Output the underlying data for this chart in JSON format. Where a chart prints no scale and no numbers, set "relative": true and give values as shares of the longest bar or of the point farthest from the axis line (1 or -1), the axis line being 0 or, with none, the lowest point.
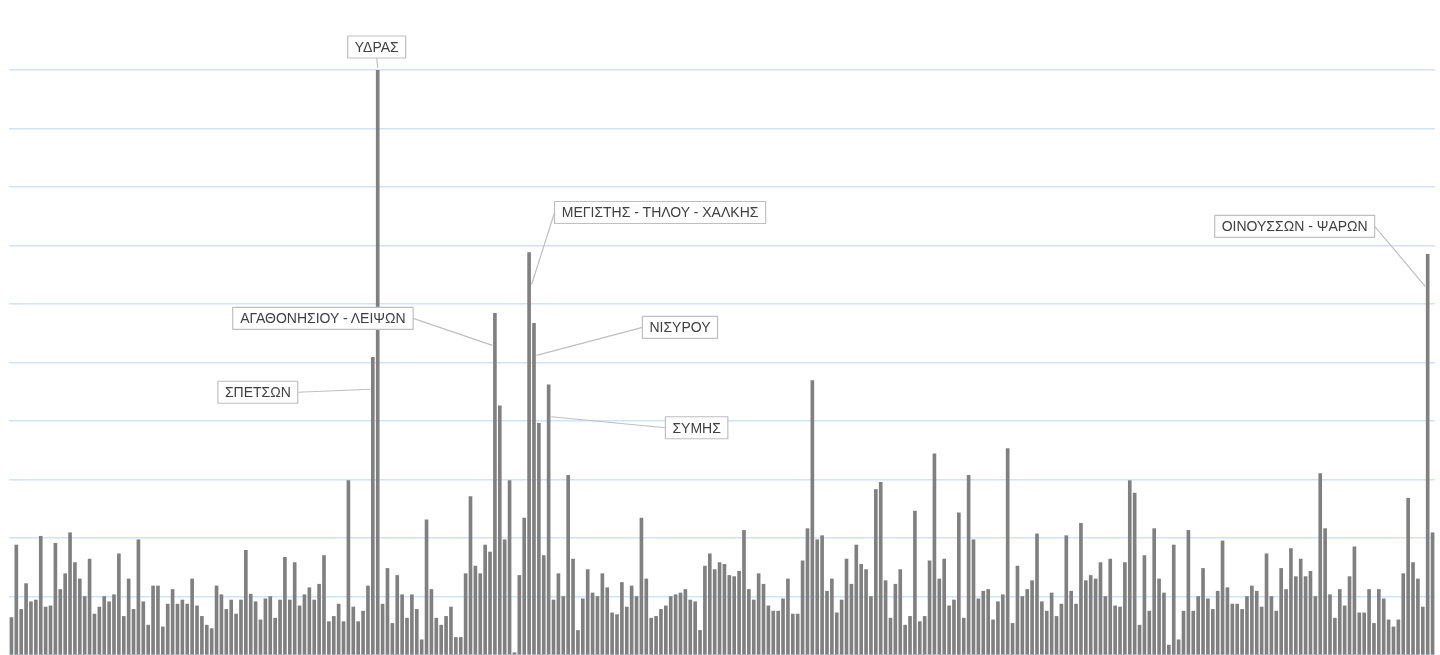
{
  "chart_data": {
    "type": "bar",
    "relative": true,
    "grid": "y",
    "color": "#808080",
    "categories": [
      null,
      null,
      null,
      null,
      null,
      null,
      null,
      null,
      null,
      null,
      null,
      null,
      null,
      null,
      null,
      null,
      null,
      null,
      null,
      null,
      null,
      null,
      null,
      null,
      null,
      null,
      null,
      null,
      null,
      null,
      null,
      null,
      null,
      null,
      null,
      null,
      null,
      null,
      null,
      null,
      null,
      null,
      null,
      null,
      null,
      null,
      null,
      null,
      null,
      null,
      null,
      null,
      null,
      null,
      null,
      null,
      null,
      null,
      null,
      null,
      null,
      null,
      null,
      null,
      null,
      null,
      null,
      null,
      null,
      null,
      null,
      null,
      null,
      null,
      null,
      null,
      null,
      null,
      null,
      null,
      null,
      null,
      null,
      null,
      null,
      null,
      null,
      null,
      null,
      null,
      null,
      null,
      null,
      null,
      null,
      null,
      null,
      null,
      null,
      null,
      null,
      null,
      null,
      null,
      null,
      null,
      null,
      null,
      null,
      null,
      null,
      null,
      null,
      null,
      null,
      null,
      null,
      null,
      null,
      null,
      null,
      null,
      null,
      null,
      null,
      null,
      null,
      null,
      null,
      null,
      null,
      null,
      null,
      null,
      null,
      null,
      null,
      null,
      null,
      null,
      null,
      null,
      null,
      null,
      null,
      null,
      null,
      null,
      null,
      null,
      null,
      null,
      null,
      null,
      null,
      null,
      null,
      null,
      null,
      null,
      null,
      null,
      null,
      null,
      null,
      null,
      null,
      null,
      null,
      null,
      null,
      null,
      null,
      null,
      null,
      null,
      null,
      null,
      null,
      null,
      null,
      null,
      null,
      null,
      null,
      null,
      null,
      null,
      null,
      null,
      null,
      null,
      null,
      null,
      null,
      null,
      null,
      null,
      null,
      null,
      null,
      null,
      null,
      null,
      null,
      null,
      null,
      null,
      null,
      null,
      null,
      null,
      null,
      null,
      null,
      null,
      null,
      null,
      null,
      null,
      null,
      null,
      null,
      null,
      null,
      null,
      null,
      null,
      null,
      null,
      null,
      null,
      null,
      null,
      null,
      null,
      null,
      null,
      null,
      null,
      null,
      null,
      null,
      null,
      null,
      null,
      null,
      null,
      null,
      null,
      null,
      null,
      null,
      null,
      null,
      null,
      null,
      null,
      null,
      null,
      null,
      null,
      null,
      null,
      null,
      null,
      null,
      null,
      null,
      null,
      null,
      null,
      null,
      null,
      null,
      null,
      null,
      null,
      null,
      null,
      null,
      null,
      null,
      null,
      null,
      null,
      null,
      null,
      null,
      null,
      null,
      null
    ],
    "values": [
      0.064,
      0.188,
      0.078,
      0.122,
      0.091,
      0.094,
      0.203,
      0.082,
      0.084,
      0.191,
      0.112,
      0.139,
      0.209,
      0.158,
      0.13,
      0.1,
      0.164,
      0.07,
      0.082,
      0.1,
      0.091,
      0.103,
      0.173,
      0.066,
      0.13,
      0.078,
      0.197,
      0.091,
      0.051,
      0.118,
      0.118,
      0.048,
      0.087,
      0.112,
      0.087,
      0.094,
      0.087,
      0.13,
      0.084,
      0.066,
      0.051,
      0.045,
      0.118,
      0.103,
      0.078,
      0.094,
      0.07,
      0.094,
      0.179,
      0.104,
      0.091,
      0.06,
      0.096,
      0.1,
      0.063,
      0.094,
      0.167,
      0.094,
      0.158,
      0.084,
      0.103,
      0.115,
      0.094,
      0.121,
      0.17,
      0.057,
      0.066,
      0.087,
      0.057,
      0.298,
      0.082,
      0.057,
      0.075,
      0.118,
      0.509,
      1,
      0.087,
      0.148,
      0.054,
      0.136,
      0.103,
      0.063,
      0.103,
      0.078,
      0.026,
      0.231,
      0.112,
      0.063,
      0.051,
      0.066,
      0.082,
      0.03,
      0.03,
      0.139,
      0.271,
      0.152,
      0.139,
      0.188,
      0.176,
      0.584,
      0.426,
      0.197,
      0.298,
      0.004,
      0.136,
      0.234,
      0.688,
      0.567,
      0.396,
      0.17,
      0.462,
      0.094,
      0.139,
      0.1,
      0.307,
      0.164,
      0.042,
      0.096,
      0.146,
      0.106,
      0.1,
      0.139,
      0.115,
      0.072,
      0.069,
      0.124,
      0.082,
      0.118,
      0.1,
      0.234,
      0.13,
      0.063,
      0.066,
      0.078,
      0.084,
      0.1,
      0.103,
      0.106,
      0.112,
      0.094,
      0.091,
      0.042,
      0.152,
      0.173,
      0.146,
      0.158,
      0.155,
      0.136,
      0.134,
      0.143,
      0.213,
      0.112,
      0.094,
      0.139,
      0.121,
      0.084,
      0.075,
      0.075,
      0.096,
      0.13,
      0.07,
      0.07,
      0.161,
      0.216,
      0.469,
      0.197,
      0.204,
      0.109,
      0.13,
      0.072,
      0.094,
      0.164,
      0.121,
      0.188,
      0.155,
      0.146,
      0.1,
      0.283,
      0.295,
      0.127,
      0.063,
      0.121,
      0.146,
      0.051,
      0.066,
      0.246,
      0.057,
      0.066,
      0.161,
      0.344,
      0.13,
      0.164,
      0.084,
      0.094,
      0.243,
      0.063,
      0.307,
      0.197,
      0.096,
      0.109,
      0.112,
      0.06,
      0.091,
      0.103,
      0.353,
      0.054,
      0.152,
      0.1,
      0.112,
      0.127,
      0.207,
      0.091,
      0.075,
      0.106,
      0.066,
      0.087,
      0.204,
      0.109,
      0.087,
      0.225,
      0.127,
      0.136,
      0.13,
      0.158,
      0.1,
      0.164,
      0.084,
      0.082,
      0.158,
      0.298,
      0.277,
      0.051,
      0.17,
      0.075,
      0.216,
      0.13,
      0.106,
      0.017,
      0.188,
      0.026,
      0.075,
      0.213,
      0.075,
      0.1,
      0.148,
      0.096,
      0.078,
      0.109,
      0.195,
      0.115,
      0.087,
      0.087,
      0.078,
      0.1,
      0.118,
      0.109,
      0.082,
      0.173,
      0.1,
      0.075,
      0.148,
      0.112,
      0.182,
      0.134,
      0.164,
      0.134,
      0.143,
      0.1,
      0.31,
      0.216,
      0.103,
      0.063,
      0.112,
      0.084,
      0.134,
      0.185,
      0.072,
      0.072,
      0.112,
      0.054,
      0.112,
      0.096,
      0.06,
      0.048,
      0.06,
      0.139,
      0.268,
      0.158,
      0.13,
      0.082,
      0.685,
      0.209
    ],
    "annotations": [
      "ΥΔΡΑΣ",
      "ΜΕΓΙΣΤΗΣ - ΤΗΛΟΥ - ΧΑΛΚΗΣ",
      "ΟΙΝΟΥΣΣΩΝ - ΨΑΡΩΝ",
      "ΑΓΑΘΟΝΗΣΙΟΥ - ΛΕΙΨΩΝ",
      "ΝΙΣΥΡΟΥ",
      "ΣΠΕΤΣΩΝ",
      "ΣΥΜΗΣ"
    ]
  }
}
